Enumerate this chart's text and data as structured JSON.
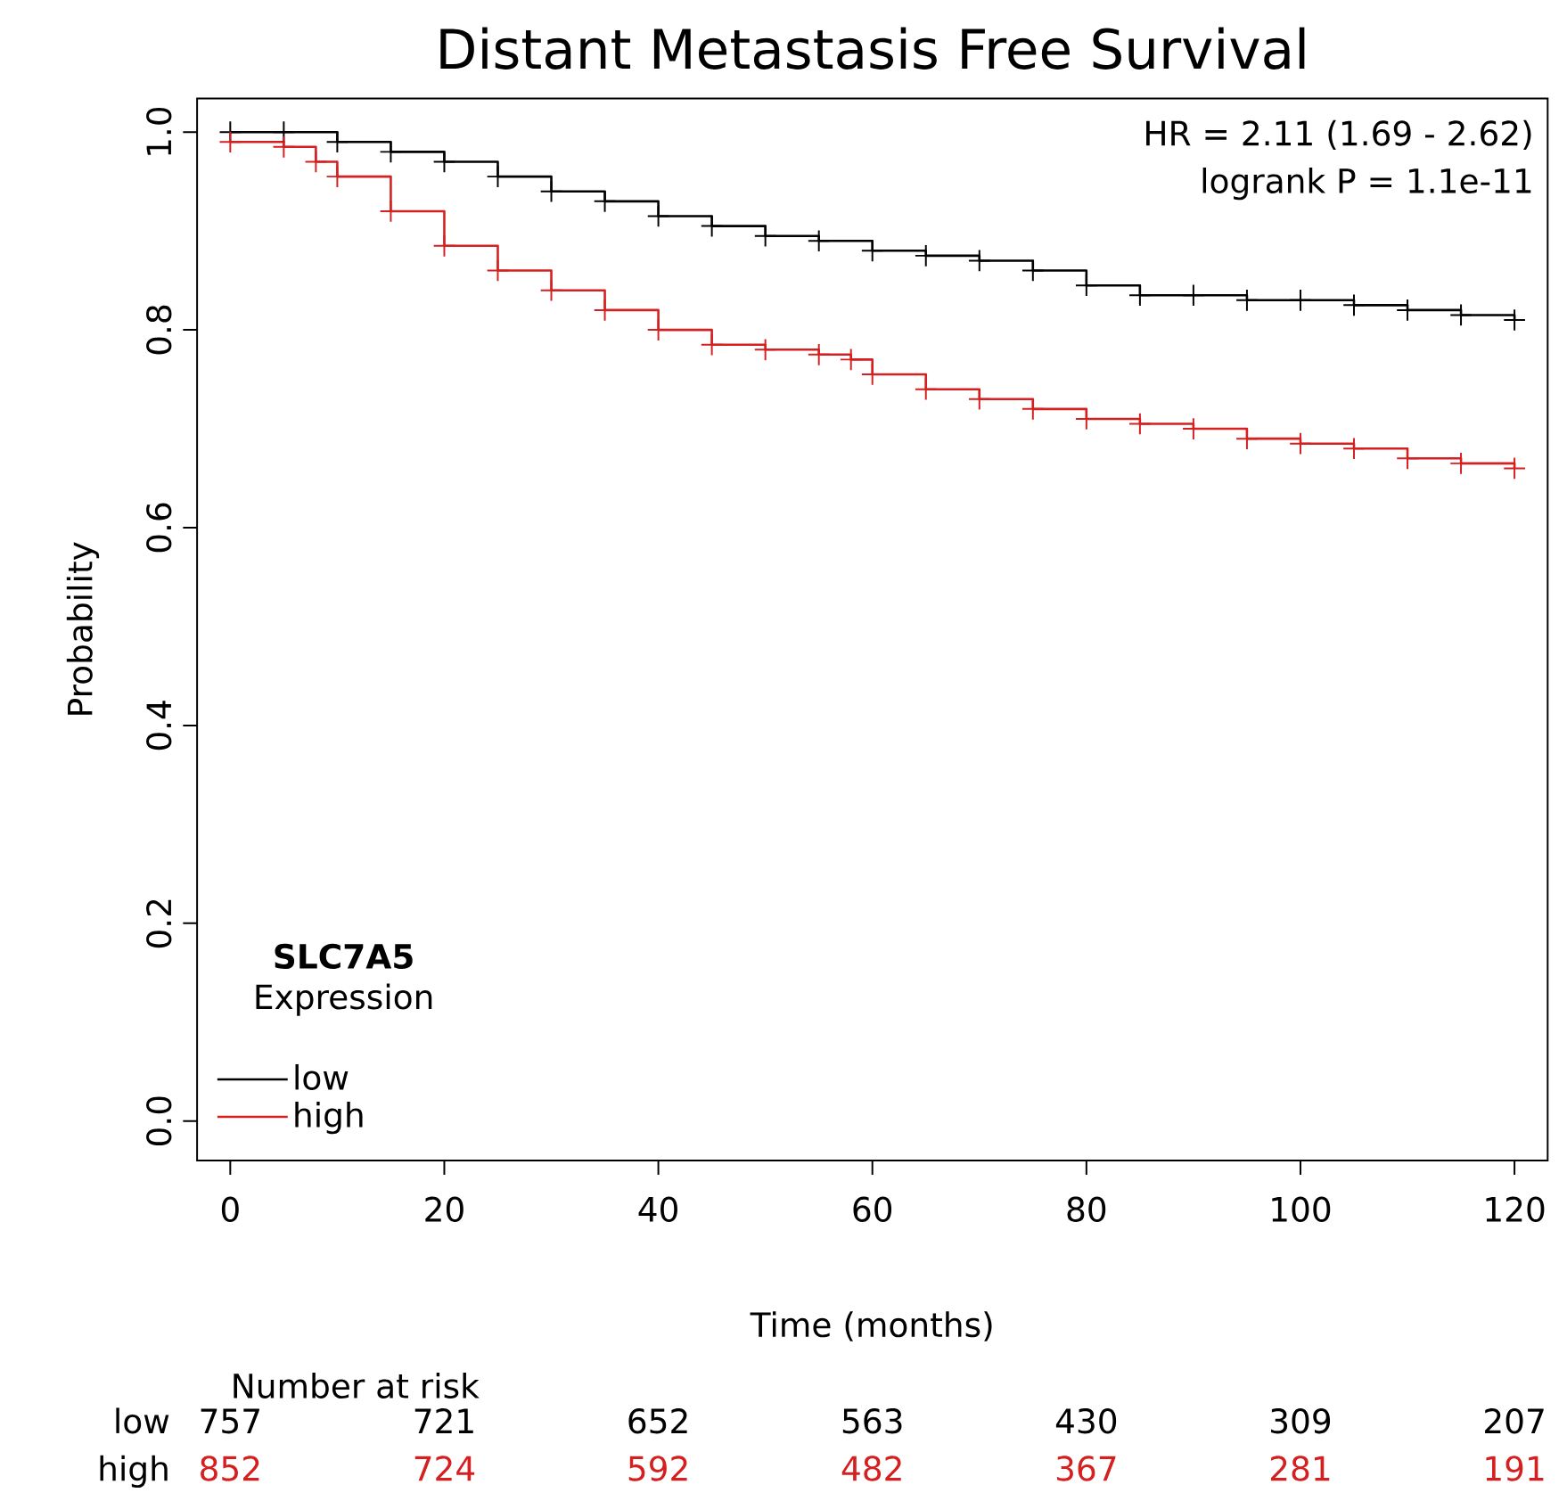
{
  "chart_data": {
    "type": "step",
    "title": "Distant Metastasis Free Survival",
    "xlabel": "Time (months)",
    "ylabel": "Probability",
    "legend_title": "**SLC7A5** Expression",
    "legend": "bottom left",
    "marker": "cross",
    "grid": false,
    "xlim": [
      -3.1,
      123.1
    ],
    "ylim": [
      -0.04,
      1.034
    ],
    "xticks": [
      0,
      20,
      40,
      60,
      80,
      100,
      120
    ],
    "yticks": [
      {
        "value": 0,
        "label": "0.0"
      },
      0.2,
      0.4,
      0.6,
      0.8,
      {
        "value": 1,
        "label": "1.0"
      }
    ],
    "series": [
      {
        "name": "low",
        "color": "#000000",
        "x": [
          0,
          5,
          10,
          15,
          20,
          25,
          30,
          35,
          40,
          45,
          50,
          55,
          60,
          65,
          70,
          75,
          80,
          85,
          90,
          95,
          100,
          105,
          110,
          115,
          120
        ],
        "values": [
          1.0,
          1.0,
          0.99,
          0.98,
          0.97,
          0.955,
          0.94,
          0.93,
          0.915,
          0.905,
          0.895,
          0.89,
          0.88,
          0.875,
          0.87,
          0.86,
          0.845,
          0.835,
          0.835,
          0.83,
          0.83,
          0.825,
          0.82,
          0.815,
          0.81
        ]
      },
      {
        "name": "high",
        "color": "#d42020",
        "x": [
          0,
          5,
          8,
          10,
          15,
          20,
          25,
          30,
          35,
          40,
          45,
          50,
          55,
          58,
          60,
          65,
          70,
          75,
          80,
          85,
          90,
          95,
          100,
          105,
          110,
          115,
          120
        ],
        "values": [
          0.99,
          0.985,
          0.97,
          0.955,
          0.92,
          0.885,
          0.86,
          0.84,
          0.82,
          0.8,
          0.785,
          0.78,
          0.775,
          0.77,
          0.755,
          0.74,
          0.73,
          0.72,
          0.71,
          0.705,
          0.7,
          0.69,
          0.685,
          0.68,
          0.67,
          0.665,
          0.66
        ]
      }
    ],
    "annotations": [
      "HR = 2.11 (1.69 - 2.62)",
      "logrank P = 1.1e-11",
      "Number at risk",
      "757",
      "721",
      "652",
      "563",
      "430",
      "309",
      "207",
      "852",
      "724",
      "592",
      "482",
      "367",
      "281",
      "191"
    ]
  }
}
